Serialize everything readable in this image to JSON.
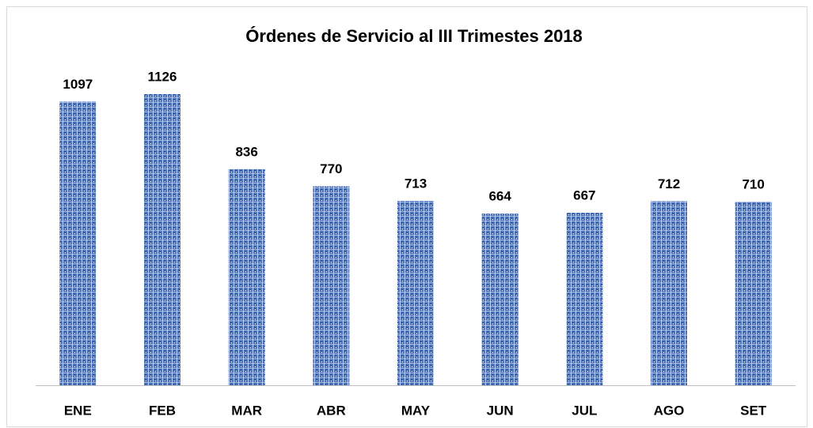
{
  "chart_data": {
    "type": "bar",
    "title": "Órdenes de Servicio al III Trimestes 2018",
    "categories": [
      "ENE",
      "FEB",
      "MAR",
      "ABR",
      "MAY",
      "JUN",
      "JUL",
      "AGO",
      "SET"
    ],
    "values": [
      1097,
      1126,
      836,
      770,
      713,
      664,
      667,
      712,
      710
    ],
    "color": "#4f74b8"
  }
}
